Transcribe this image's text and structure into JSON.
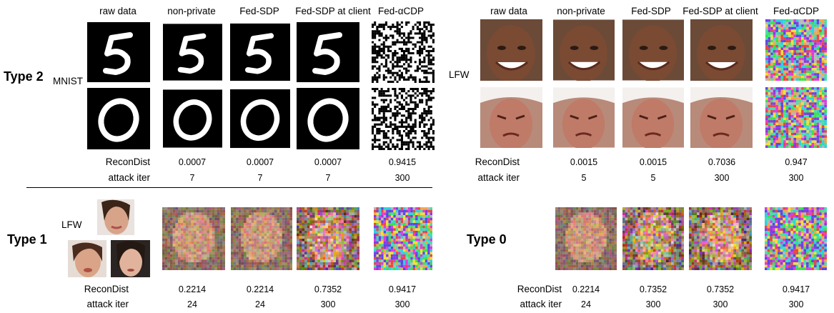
{
  "column_headers": [
    "raw data",
    "non-private",
    "Fed-SDP",
    "Fed-SDP at client",
    "Fed-αCDP"
  ],
  "types": {
    "t2": "Type 2",
    "t1": "Type 1",
    "t0": "Type 0"
  },
  "datasets": {
    "mnist": "MNIST",
    "lfw": "LFW"
  },
  "row_labels": {
    "recon": "ReconDist",
    "iter": "attack iter"
  },
  "type2_mnist": {
    "recon": [
      "0.0007",
      "0.0007",
      "0.0007",
      "0.9415"
    ],
    "iter": [
      "7",
      "7",
      "7",
      "300"
    ]
  },
  "type2_lfw": {
    "recon": [
      "0.0015",
      "0.0015",
      "0.7036",
      "0.947"
    ],
    "iter": [
      "5",
      "5",
      "300",
      "300"
    ]
  },
  "type1_lfw": {
    "recon": [
      "0.2214",
      "0.2214",
      "0.7352",
      "0.9417"
    ],
    "iter": [
      "24",
      "24",
      "300",
      "300"
    ]
  },
  "type0": {
    "recon": [
      "0.2214",
      "0.7352",
      "0.7352",
      "0.9417"
    ],
    "iter": [
      "24",
      "300",
      "300",
      "300"
    ]
  },
  "colors": {
    "skin": "#c98f6b",
    "skin_dark": "#9a5a3f",
    "digit_bg": "#000000",
    "digit_fg": "#ffffff"
  }
}
